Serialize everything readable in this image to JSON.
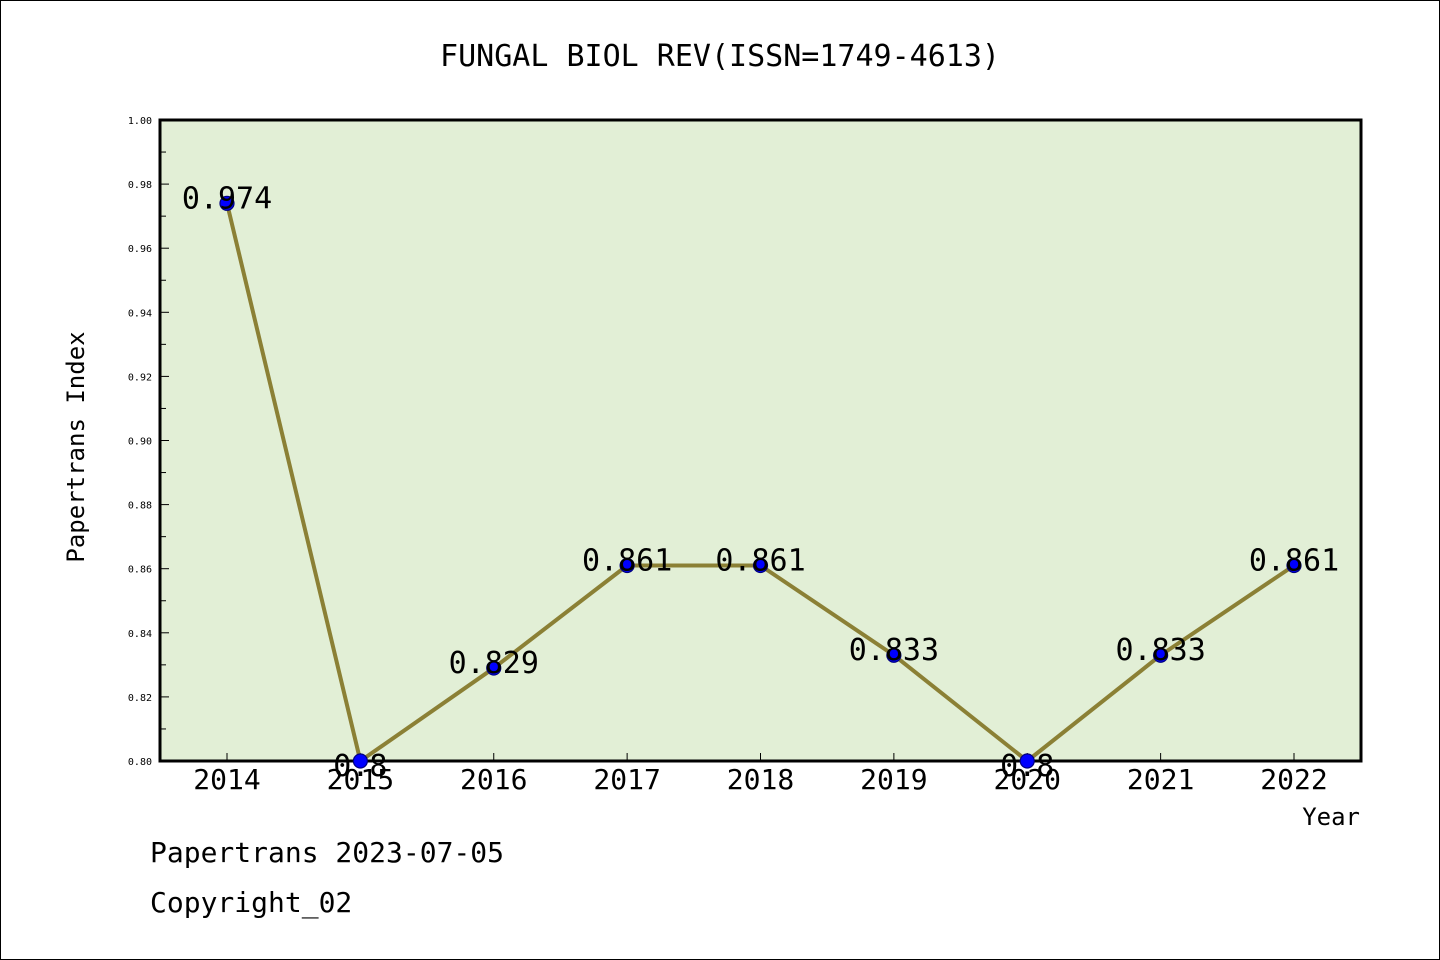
{
  "chart_data": {
    "type": "line",
    "title": "FUNGAL BIOL REV(ISSN=1749-4613)",
    "xlabel": "Year",
    "ylabel": "Papertrans Index",
    "categories": [
      "2014",
      "2015",
      "2016",
      "2017",
      "2018",
      "2019",
      "2020",
      "2021",
      "2022"
    ],
    "values": [
      0.974,
      0.8,
      0.829,
      0.861,
      0.861,
      0.833,
      0.8,
      0.833,
      0.861
    ],
    "data_labels": [
      "0.974",
      "0.8",
      "0.829",
      "0.861",
      "0.861",
      "0.833",
      "0.8",
      "0.833",
      "0.861"
    ],
    "ylim": [
      0.8,
      1.0
    ],
    "yticks": [
      "0.80",
      "0.82",
      "0.84",
      "0.86",
      "0.88",
      "0.90",
      "0.92",
      "0.94",
      "0.96",
      "0.98",
      "1.00"
    ],
    "grid": false,
    "legend": "none",
    "colors": {
      "plot_background": "#e2efd6",
      "line": "#8b8035",
      "marker": "#0000ff",
      "marker_edge": "#000080"
    }
  },
  "footer": {
    "source": "Papertrans 2023-07-05",
    "copyright": "Copyright_02"
  }
}
